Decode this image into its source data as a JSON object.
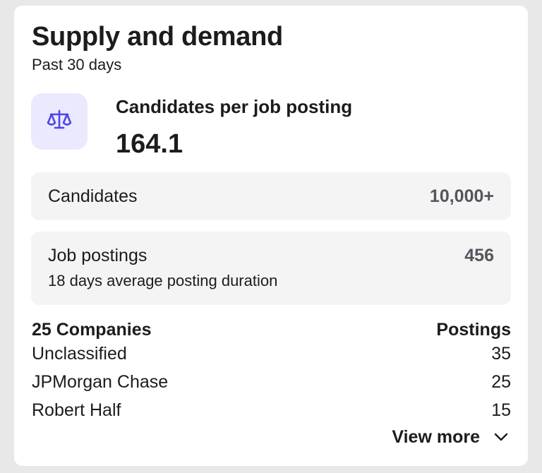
{
  "card": {
    "title": "Supply and demand",
    "subtitle": "Past 30 days"
  },
  "metric": {
    "icon": "scale-icon",
    "label": "Candidates per job posting",
    "value": "164.1",
    "accent_color": "#4f46e5",
    "icon_bg_color": "#ebe9fe"
  },
  "candidates": {
    "label": "Candidates",
    "value": "10,000+"
  },
  "postings": {
    "label": "Job postings",
    "value": "456",
    "detail": "18 days average posting duration"
  },
  "companies": {
    "header_left": "25 Companies",
    "header_right": "Postings",
    "rows": [
      {
        "name": "Unclassified",
        "count": "35"
      },
      {
        "name": "JPMorgan Chase",
        "count": "25"
      },
      {
        "name": "Robert Half",
        "count": "15"
      }
    ],
    "view_more_label": "View more",
    "view_more_icon": "chevron-down-icon"
  }
}
